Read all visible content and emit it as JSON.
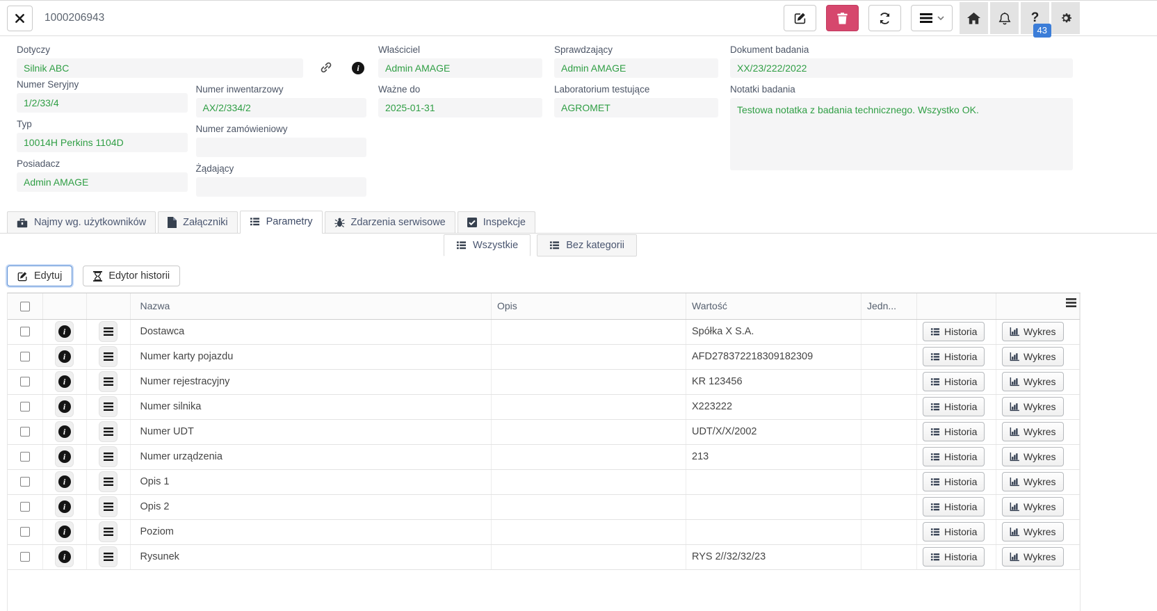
{
  "colors": {
    "accent_green": "#2f9e44",
    "danger_red": "#d6476d",
    "badge_blue": "#3b7dd8"
  },
  "header": {
    "title": "1000206943",
    "help_badge": "43"
  },
  "form": {
    "dotyczy": {
      "label": "Dotyczy",
      "value": "Silnik ABC"
    },
    "numer_seryjny": {
      "label": "Numer Seryjny",
      "value": "1/2/33/4"
    },
    "numer_inwentarzowy": {
      "label": "Numer inwentarzowy",
      "value": "AX/2/334/2"
    },
    "typ": {
      "label": "Typ",
      "value": "10014H Perkins 1104D"
    },
    "numer_zamowieniowy": {
      "label": "Numer zamówieniowy",
      "value": ""
    },
    "posiadacz": {
      "label": "Posiadacz",
      "value": "Admin AMAGE"
    },
    "zadajacy": {
      "label": "Żądający",
      "value": ""
    },
    "wlasciciel": {
      "label": "Właściciel",
      "value": "Admin AMAGE"
    },
    "wazne_do": {
      "label": "Ważne do",
      "value": "2025-01-31"
    },
    "sprawdzajacy": {
      "label": "Sprawdzający",
      "value": "Admin AMAGE"
    },
    "laboratorium_testujace": {
      "label": "Laboratorium testujące",
      "value": "AGROMET"
    },
    "dokument_badania": {
      "label": "Dokument badania",
      "value": "XX/23/222/2022"
    },
    "notatki_badania": {
      "label": "Notatki badania",
      "value": "Testowa notatka z badania technicznego. Wszystko OK."
    }
  },
  "tabs": {
    "items": [
      {
        "label": "Najmy wg. użytkowników"
      },
      {
        "label": "Załączniki"
      },
      {
        "label": "Parametry"
      },
      {
        "label": "Zdarzenia serwisowe"
      },
      {
        "label": "Inspekcje"
      }
    ],
    "active": "Parametry"
  },
  "subtabs": {
    "items": [
      {
        "label": "Wszystkie"
      },
      {
        "label": "Bez kategorii"
      }
    ],
    "active": "Wszystkie"
  },
  "actions": {
    "edit": "Edytuj",
    "history_editor": "Edytor historii"
  },
  "table": {
    "columns": {
      "name": "Nazwa",
      "description": "Opis",
      "value": "Wartość",
      "unit": "Jedn..."
    },
    "history_button": "Historia",
    "chart_button": "Wykres",
    "rows": [
      {
        "name": "Dostawca",
        "description": "",
        "value": "Spółka X S.A.",
        "unit": ""
      },
      {
        "name": "Numer karty pojazdu",
        "description": "",
        "value": "AFD278372218309182309",
        "unit": ""
      },
      {
        "name": "Numer rejestracyjny",
        "description": "",
        "value": "KR 123456",
        "unit": ""
      },
      {
        "name": "Numer silnika",
        "description": "",
        "value": "X223222",
        "unit": ""
      },
      {
        "name": "Numer UDT",
        "description": "",
        "value": "UDT/X/X/2002",
        "unit": ""
      },
      {
        "name": "Numer urządzenia",
        "description": "",
        "value": "213",
        "unit": ""
      },
      {
        "name": "Opis 1",
        "description": "",
        "value": "",
        "unit": ""
      },
      {
        "name": "Opis 2",
        "description": "",
        "value": "",
        "unit": ""
      },
      {
        "name": "Poziom",
        "description": "",
        "value": "",
        "unit": ""
      },
      {
        "name": "Rysunek",
        "description": "",
        "value": "RYS 2//32/32/23",
        "unit": ""
      }
    ]
  }
}
